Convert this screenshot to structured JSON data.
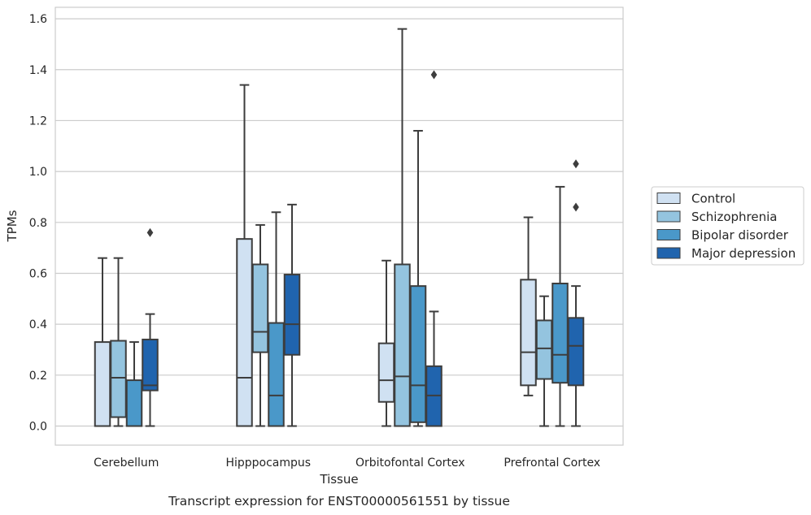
{
  "caption": "Transcript expression for ENST00000561551 by tissue",
  "chart_data": {
    "type": "box",
    "xlabel": "Tissue",
    "ylabel": "TPMs",
    "ylim": [
      -0.075,
      1.645
    ],
    "yticks": [
      0.0,
      0.2,
      0.4,
      0.6,
      0.8,
      1.0,
      1.2,
      1.4,
      1.6
    ],
    "ytick_labels": [
      "0.0",
      "0.2",
      "0.4",
      "0.6",
      "0.8",
      "1.0",
      "1.2",
      "1.4",
      "1.6"
    ],
    "grid": "horizontal",
    "legend_position": "right",
    "categories": [
      "Cerebellum",
      "Hipppocampus",
      "Orbitofontal Cortex",
      "Prefrontal Cortex"
    ],
    "series": [
      {
        "name": "Control",
        "color": "#d0e1f2",
        "boxes": [
          {
            "whislo": 0.0,
            "q1": 0.0,
            "med": 0.0,
            "q3": 0.33,
            "whishi": 0.66,
            "fliers": []
          },
          {
            "whislo": 0.0,
            "q1": 0.0,
            "med": 0.19,
            "q3": 0.735,
            "whishi": 1.34,
            "fliers": []
          },
          {
            "whislo": 0.0,
            "q1": 0.095,
            "med": 0.18,
            "q3": 0.325,
            "whishi": 0.65,
            "fliers": []
          },
          {
            "whislo": 0.12,
            "q1": 0.16,
            "med": 0.29,
            "q3": 0.575,
            "whishi": 0.82,
            "fliers": []
          }
        ]
      },
      {
        "name": "Schizophrenia",
        "color": "#94c4df",
        "boxes": [
          {
            "whislo": 0.0,
            "q1": 0.035,
            "med": 0.19,
            "q3": 0.335,
            "whishi": 0.66,
            "fliers": []
          },
          {
            "whislo": 0.0,
            "q1": 0.29,
            "med": 0.37,
            "q3": 0.635,
            "whishi": 0.79,
            "fliers": []
          },
          {
            "whislo": 0.0,
            "q1": 0.0,
            "med": 0.195,
            "q3": 0.635,
            "whishi": 1.56,
            "fliers": []
          },
          {
            "whislo": 0.0,
            "q1": 0.185,
            "med": 0.305,
            "q3": 0.415,
            "whishi": 0.51,
            "fliers": []
          }
        ]
      },
      {
        "name": "Bipolar disorder",
        "color": "#4a98c9",
        "boxes": [
          {
            "whislo": 0.0,
            "q1": 0.0,
            "med": 0.0,
            "q3": 0.18,
            "whishi": 0.33,
            "fliers": []
          },
          {
            "whislo": 0.0,
            "q1": 0.0,
            "med": 0.12,
            "q3": 0.405,
            "whishi": 0.84,
            "fliers": []
          },
          {
            "whislo": 0.0,
            "q1": 0.015,
            "med": 0.16,
            "q3": 0.55,
            "whishi": 1.16,
            "fliers": []
          },
          {
            "whislo": 0.0,
            "q1": 0.17,
            "med": 0.28,
            "q3": 0.56,
            "whishi": 0.94,
            "fliers": []
          }
        ]
      },
      {
        "name": "Major depression",
        "color": "#2064ae",
        "boxes": [
          {
            "whislo": 0.0,
            "q1": 0.14,
            "med": 0.16,
            "q3": 0.34,
            "whishi": 0.44,
            "fliers": [
              0.76
            ]
          },
          {
            "whislo": 0.0,
            "q1": 0.28,
            "med": 0.4,
            "q3": 0.595,
            "whishi": 0.87,
            "fliers": []
          },
          {
            "whislo": 0.0,
            "q1": 0.0,
            "med": 0.12,
            "q3": 0.235,
            "whishi": 0.45,
            "fliers": [
              1.38
            ]
          },
          {
            "whislo": 0.0,
            "q1": 0.16,
            "med": 0.315,
            "q3": 0.425,
            "whishi": 0.55,
            "fliers": [
              0.86,
              1.03
            ]
          }
        ]
      }
    ]
  }
}
